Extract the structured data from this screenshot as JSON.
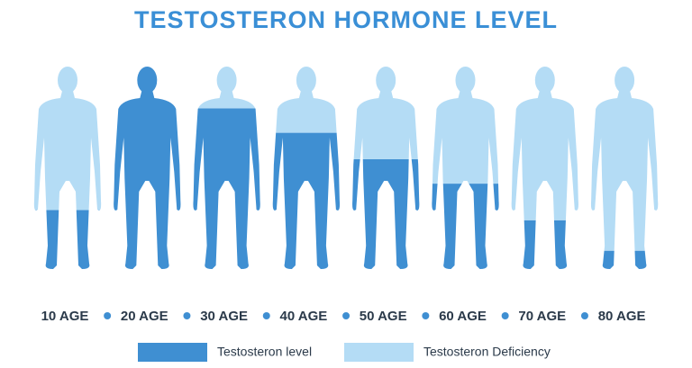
{
  "chart_data": {
    "type": "pictogram",
    "title": "TESTOSTERON HORMONE LEVEL",
    "categories": [
      "10 AGE",
      "20 AGE",
      "30 AGE",
      "40 AGE",
      "50 AGE",
      "60 AGE",
      "70 AGE",
      "80 AGE"
    ],
    "series": [
      {
        "name": "Testosteron level",
        "color": "#3f8fd2",
        "values": [
          29,
          100,
          79,
          67,
          54,
          42,
          24,
          9
        ]
      },
      {
        "name": "Testosteron Deficiency",
        "color": "#b4dcf5",
        "values": [
          71,
          0,
          21,
          33,
          46,
          58,
          76,
          91
        ]
      }
    ],
    "ylim": [
      0,
      100
    ]
  }
}
